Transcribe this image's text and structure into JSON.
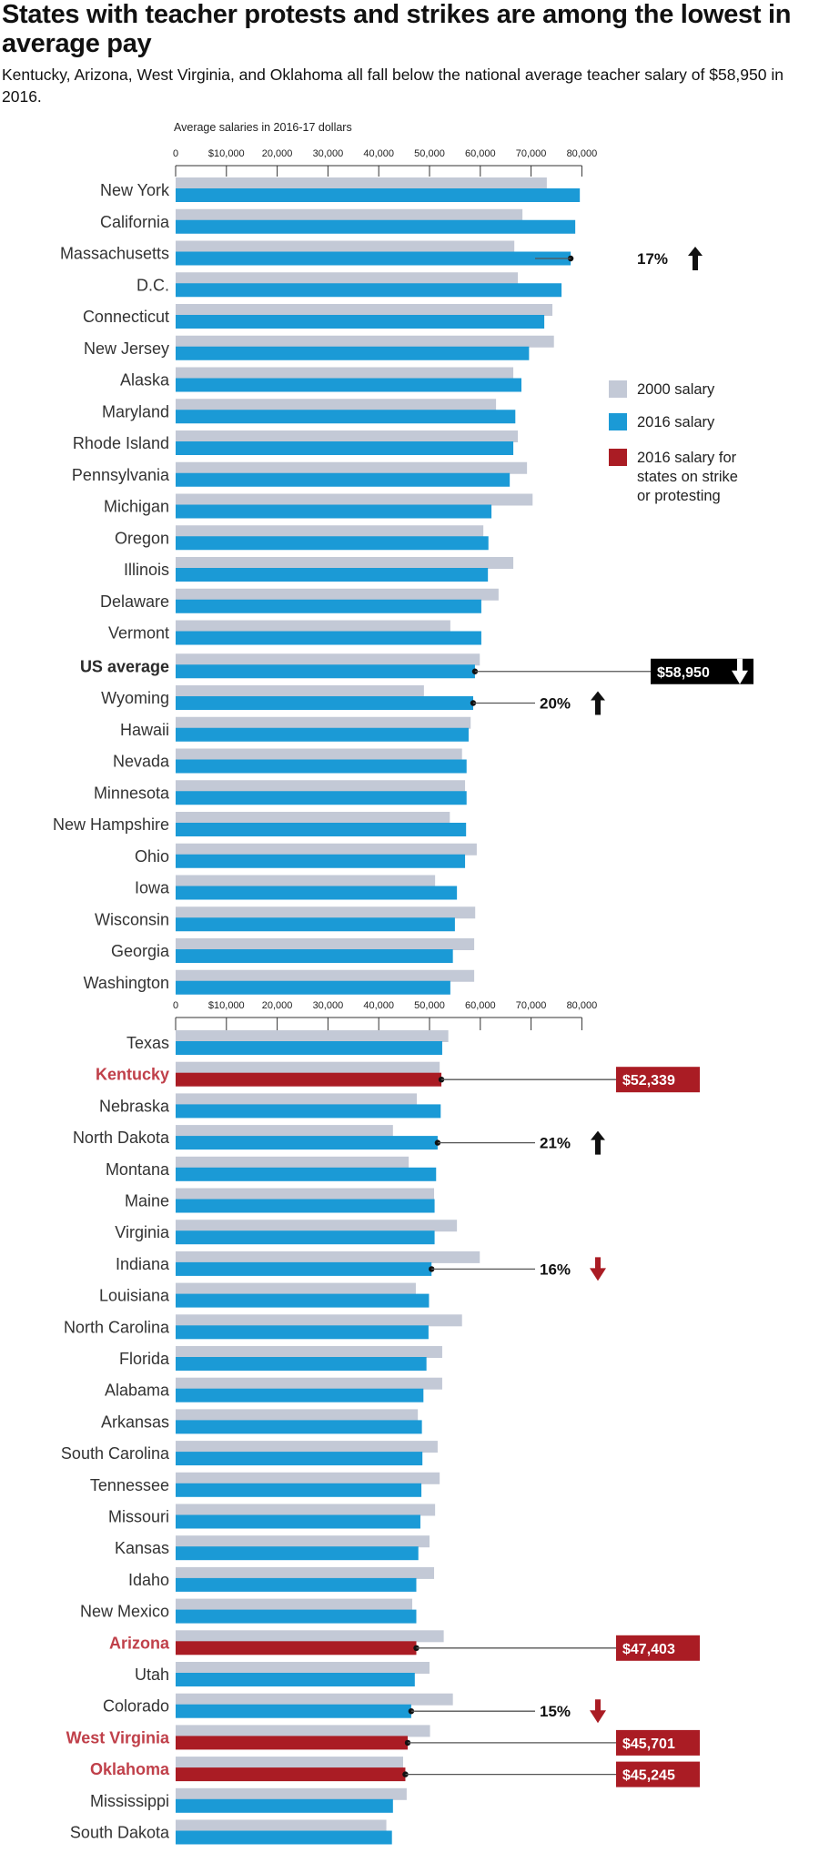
{
  "header": {
    "title": "States with teacher protests and strikes are among the lowest in average pay",
    "subtitle": "Kentucky, Arizona, West Virginia, and Oklahoma all fall below the national average teacher salary of $58,950 in 2016."
  },
  "colors": {
    "salary_2000": "#c3c9d6",
    "salary_2016": "#1b9ad6",
    "salary_2016_strike": "#aa1c24",
    "strike_label": "#c0404a",
    "decrease_arrow": "#aa1c24",
    "increase_arrow": "#111111"
  },
  "chart_data": {
    "type": "bar",
    "orientation": "horizontal",
    "title": "States with teacher protests and strikes are among the lowest in average pay",
    "xlabel": "Average salaries in 2016-17 dollars",
    "ylabel": "",
    "xlim": [
      0,
      80000
    ],
    "x_ticks": [
      "0",
      "$10,000",
      "20,000",
      "30,000",
      "40,000",
      "50,000",
      "60,000",
      "70,000",
      "80,000"
    ],
    "x_tick_values": [
      0,
      10000,
      20000,
      30000,
      40000,
      50000,
      60000,
      70000,
      80000
    ],
    "grid": false,
    "legend": {
      "placement": "right",
      "entries": [
        {
          "key": "salary_2000",
          "label": "2000 salary"
        },
        {
          "key": "salary_2016",
          "label": "2016 salary"
        },
        {
          "key": "salary_2016_strike",
          "label": "2016 salary for states on strike or protesting",
          "lines": [
            "2016 salary for",
            "states on strike",
            "or protesting"
          ]
        }
      ]
    },
    "series_names": [
      "2000 salary",
      "2016 salary"
    ],
    "panels": [
      {
        "rows": [
          {
            "name": "New York",
            "s2000": 73100,
            "s2016": 79600
          },
          {
            "name": "California",
            "s2000": 68300,
            "s2016": 78700
          },
          {
            "name": "Massachusetts",
            "s2000": 66700,
            "s2016": 77800,
            "annotation": {
              "type": "pct",
              "text": "17%",
              "direction": "up"
            }
          },
          {
            "name": "D.C.",
            "s2000": 67400,
            "s2016": 76000
          },
          {
            "name": "Connecticut",
            "s2000": 74200,
            "s2016": 72600
          },
          {
            "name": "New Jersey",
            "s2000": 74500,
            "s2016": 69600
          },
          {
            "name": "Alaska",
            "s2000": 66500,
            "s2016": 68100
          },
          {
            "name": "Maryland",
            "s2000": 63100,
            "s2016": 66900
          },
          {
            "name": "Rhode Island",
            "s2000": 67400,
            "s2016": 66500
          },
          {
            "name": "Pennsylvania",
            "s2000": 69200,
            "s2016": 65800
          },
          {
            "name": "Michigan",
            "s2000": 70300,
            "s2016": 62200
          },
          {
            "name": "Oregon",
            "s2000": 60600,
            "s2016": 61600
          },
          {
            "name": "Illinois",
            "s2000": 66500,
            "s2016": 61500
          },
          {
            "name": "Delaware",
            "s2000": 63600,
            "s2016": 60200
          },
          {
            "name": "Vermont",
            "s2000": 54100,
            "s2016": 60200
          },
          {
            "name": "US average",
            "s2000": 59900,
            "s2016": 58950,
            "style": "bold",
            "annotation": {
              "type": "box",
              "text": "$58,950",
              "direction": "down",
              "box_color": "#000000"
            }
          },
          {
            "name": "Wyoming",
            "s2000": 48900,
            "s2016": 58600,
            "annotation": {
              "type": "pct",
              "text": "20%",
              "direction": "up"
            }
          },
          {
            "name": "Hawaii",
            "s2000": 58100,
            "s2016": 57700
          },
          {
            "name": "Nevada",
            "s2000": 56400,
            "s2016": 57300
          },
          {
            "name": "Minnesota",
            "s2000": 57000,
            "s2016": 57300
          },
          {
            "name": "New Hampshire",
            "s2000": 54000,
            "s2016": 57200
          },
          {
            "name": "Ohio",
            "s2000": 59300,
            "s2016": 57000
          },
          {
            "name": "Iowa",
            "s2000": 51100,
            "s2016": 55400
          },
          {
            "name": "Wisconsin",
            "s2000": 59000,
            "s2016": 55000
          },
          {
            "name": "Georgia",
            "s2000": 58800,
            "s2016": 54600
          },
          {
            "name": "Washington",
            "s2000": 58800,
            "s2016": 54100
          }
        ]
      },
      {
        "rows": [
          {
            "name": "Texas",
            "s2000": 53700,
            "s2016": 52500
          },
          {
            "name": "Kentucky",
            "s2000": 52000,
            "s2016": 52339,
            "strike": true,
            "annotation": {
              "type": "box",
              "text": "$52,339",
              "box_color": "#aa1c24"
            }
          },
          {
            "name": "Nebraska",
            "s2000": 47500,
            "s2016": 52200
          },
          {
            "name": "North Dakota",
            "s2000": 42800,
            "s2016": 51600,
            "annotation": {
              "type": "pct",
              "text": "21%",
              "direction": "up"
            }
          },
          {
            "name": "Montana",
            "s2000": 45900,
            "s2016": 51300
          },
          {
            "name": "Maine",
            "s2000": 50900,
            "s2016": 51000
          },
          {
            "name": "Virginia",
            "s2000": 55400,
            "s2016": 51000
          },
          {
            "name": "Indiana",
            "s2000": 59900,
            "s2016": 50400,
            "annotation": {
              "type": "pct",
              "text": "16%",
              "direction": "down"
            }
          },
          {
            "name": "Louisiana",
            "s2000": 47300,
            "s2016": 49900
          },
          {
            "name": "North Carolina",
            "s2000": 56400,
            "s2016": 49800
          },
          {
            "name": "Florida",
            "s2000": 52500,
            "s2016": 49400
          },
          {
            "name": "Alabama",
            "s2000": 52500,
            "s2016": 48800
          },
          {
            "name": "Arkansas",
            "s2000": 47700,
            "s2016": 48500
          },
          {
            "name": "South Carolina",
            "s2000": 51600,
            "s2016": 48600
          },
          {
            "name": "Tennessee",
            "s2000": 52000,
            "s2016": 48400
          },
          {
            "name": "Missouri",
            "s2000": 51100,
            "s2016": 48200
          },
          {
            "name": "Kansas",
            "s2000": 50000,
            "s2016": 47800
          },
          {
            "name": "Idaho",
            "s2000": 50900,
            "s2016": 47400
          },
          {
            "name": "New Mexico",
            "s2000": 46600,
            "s2016": 47400
          },
          {
            "name": "Arizona",
            "s2000": 52800,
            "s2016": 47403,
            "strike": true,
            "annotation": {
              "type": "box",
              "text": "$47,403",
              "box_color": "#aa1c24"
            }
          },
          {
            "name": "Utah",
            "s2000": 50000,
            "s2016": 47100
          },
          {
            "name": "Colorado",
            "s2000": 54600,
            "s2016": 46400,
            "annotation": {
              "type": "pct",
              "text": "15%",
              "direction": "down"
            }
          },
          {
            "name": "West Virginia",
            "s2000": 50100,
            "s2016": 45701,
            "strike": true,
            "annotation": {
              "type": "box",
              "text": "$45,701",
              "box_color": "#aa1c24"
            }
          },
          {
            "name": "Oklahoma",
            "s2000": 44800,
            "s2016": 45245,
            "strike": true,
            "annotation": {
              "type": "box",
              "text": "$45,245",
              "box_color": "#aa1c24"
            }
          },
          {
            "name": "Mississippi",
            "s2000": 45500,
            "s2016": 42800
          },
          {
            "name": "South Dakota",
            "s2000": 41500,
            "s2016": 42600
          }
        ]
      }
    ]
  }
}
